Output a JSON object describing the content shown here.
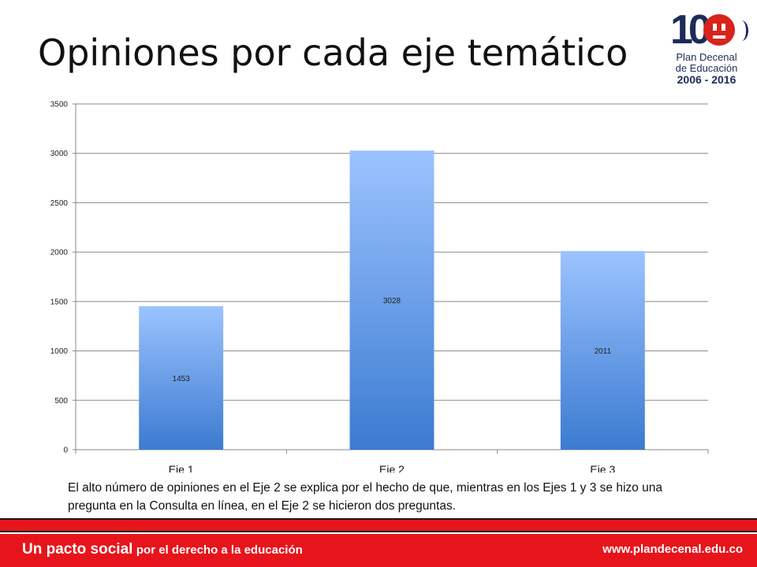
{
  "slide": {
    "title": "Opiniones por cada eje temático",
    "caption": "El alto número de opiniones en el Eje 2 se explica por el hecho de que, mientras en los Ejes 1 y 3 se hizo una pregunta en la Consulta en línea, en el Eje 2 se hicieron dos preguntas."
  },
  "logo": {
    "number": "10",
    "line1": "Plan Decenal",
    "line2": "de Educación",
    "line3": "2006 - 2016"
  },
  "footer": {
    "slogan_main": "Un pacto social",
    "slogan_rest": "por el derecho a la educación",
    "url": "www.plandecenal.edu.co"
  },
  "colors": {
    "bar_top": "#9cc3ff",
    "bar_bottom": "#3b7bd1",
    "grid": "#888888",
    "footer_red": "#e8141b"
  },
  "chart_data": {
    "type": "bar",
    "categories": [
      "Eje 1",
      "Eje 2",
      "Eje 3"
    ],
    "values": [
      1453,
      3028,
      2011
    ],
    "data_labels": [
      "1453",
      "3028",
      "2011"
    ],
    "ylim": [
      0,
      3500
    ],
    "yticks": [
      0,
      500,
      1000,
      1500,
      2000,
      2500,
      3000,
      3500
    ],
    "grid": true,
    "legend": "none"
  }
}
